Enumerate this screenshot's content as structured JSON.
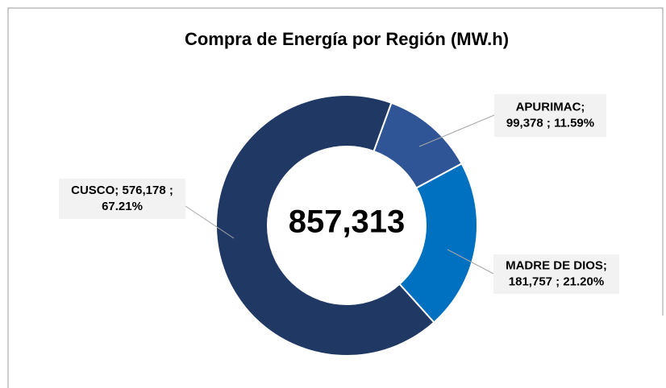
{
  "chart_data": {
    "type": "pie",
    "donut": true,
    "title": "Compra de Energía por Región (MW.h)",
    "center_label": "857,313",
    "values": [
      99378,
      181757,
      576178
    ],
    "value_labels": [
      [
        "APURIMAC;",
        "99,378 ; 11.59%"
      ],
      [
        "MADRE DE DIOS;",
        "181,757 ; 21.20%"
      ],
      [
        "CUSCO;  576,178 ;",
        "67.21%"
      ]
    ],
    "colors": [
      "#2f5597",
      "#0070c0",
      "#1f3864"
    ]
  }
}
